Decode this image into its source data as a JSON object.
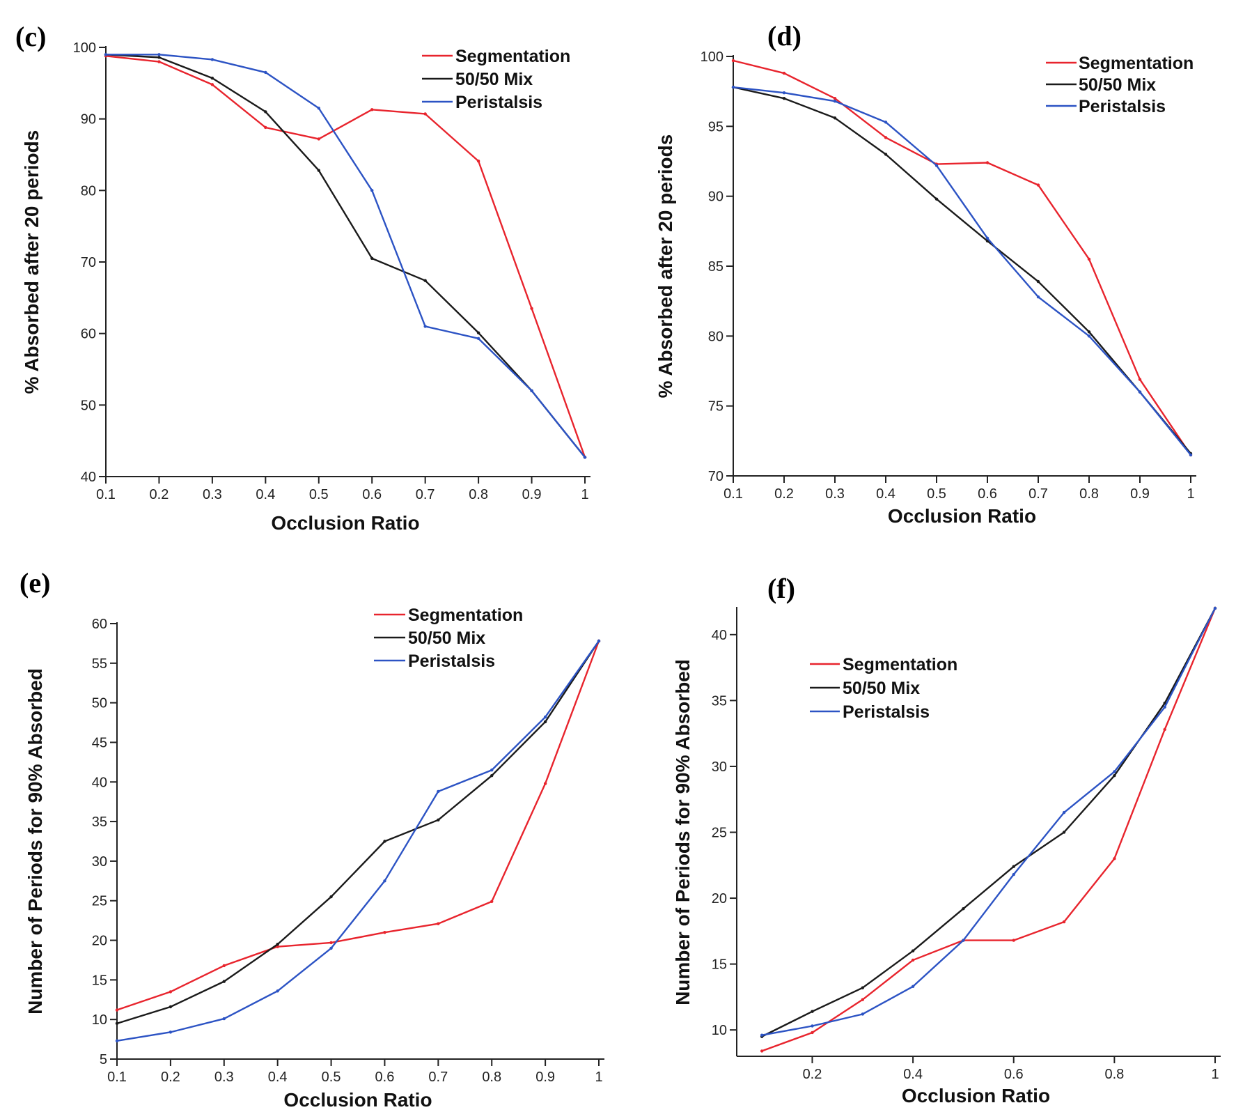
{
  "colors": {
    "segmentation": "#e8242d",
    "mix": "#1a1a1a",
    "peristalsis": "#2c53c4"
  },
  "chart_data": [
    {
      "panel": "(c)",
      "type": "line",
      "xlabel": "Occlusion Ratio",
      "ylabel": "% Absorbed after 20 periods",
      "xlim": [
        0.1,
        1.0
      ],
      "ylim": [
        40,
        100
      ],
      "xticks": [
        0.1,
        0.2,
        0.3,
        0.4,
        0.5,
        0.6,
        0.7,
        0.8,
        0.9,
        1.0
      ],
      "xtick_labels": [
        "0.1",
        "0.2",
        "0.3",
        "0.4",
        "0.5",
        "0.6",
        "0.7",
        "0.8",
        "0.9",
        "1"
      ],
      "yticks": [
        40,
        50,
        60,
        70,
        80,
        90,
        100
      ],
      "ytick_labels": [
        "40",
        "50",
        "60",
        "70",
        "80",
        "90",
        "100"
      ],
      "legend_position": "top-right",
      "x": [
        0.1,
        0.2,
        0.3,
        0.4,
        0.5,
        0.6,
        0.7,
        0.8,
        0.9,
        1.0
      ],
      "series": [
        {
          "name": "Segmentation",
          "color_key": "segmentation",
          "values": [
            98.8,
            98.0,
            94.8,
            88.8,
            87.2,
            91.3,
            90.7,
            84.1,
            63.5,
            42.7
          ]
        },
        {
          "name": "50/50 Mix",
          "color_key": "mix",
          "values": [
            99.0,
            98.6,
            95.7,
            91.0,
            82.8,
            70.5,
            67.4,
            60.1,
            52.0,
            42.7
          ]
        },
        {
          "name": "Peristalsis",
          "color_key": "peristalsis",
          "values": [
            99.0,
            99.0,
            98.3,
            96.5,
            91.5,
            80.0,
            61.0,
            59.3,
            52.0,
            42.7
          ]
        }
      ]
    },
    {
      "panel": "(d)",
      "type": "line",
      "xlabel": "Occlusion Ratio",
      "ylabel": "% Absorbed after 20 periods",
      "xlim": [
        0.1,
        1.0
      ],
      "ylim": [
        70,
        100
      ],
      "xticks": [
        0.1,
        0.2,
        0.3,
        0.4,
        0.5,
        0.6,
        0.7,
        0.8,
        0.9,
        1.0
      ],
      "xtick_labels": [
        "0.1",
        "0.2",
        "0.3",
        "0.4",
        "0.5",
        "0.6",
        "0.7",
        "0.8",
        "0.9",
        "1"
      ],
      "yticks": [
        70,
        75,
        80,
        85,
        90,
        95,
        100
      ],
      "ytick_labels": [
        "70",
        "75",
        "80",
        "85",
        "90",
        "95",
        "100"
      ],
      "legend_position": "top-right",
      "x": [
        0.1,
        0.2,
        0.3,
        0.4,
        0.5,
        0.6,
        0.7,
        0.8,
        0.9,
        1.0
      ],
      "series": [
        {
          "name": "Segmentation",
          "color_key": "segmentation",
          "values": [
            99.7,
            98.8,
            97.0,
            94.2,
            92.3,
            92.4,
            90.8,
            85.5,
            76.9,
            71.5
          ]
        },
        {
          "name": "50/50 Mix",
          "color_key": "mix",
          "values": [
            97.8,
            97.0,
            95.6,
            93.0,
            89.8,
            86.8,
            83.9,
            80.3,
            76.0,
            71.6
          ]
        },
        {
          "name": "Peristalsis",
          "color_key": "peristalsis",
          "values": [
            97.8,
            97.4,
            96.8,
            95.3,
            92.2,
            87.0,
            82.8,
            80.0,
            76.0,
            71.5
          ]
        }
      ]
    },
    {
      "panel": "(e)",
      "type": "line",
      "xlabel": "Occlusion Ratio",
      "ylabel": "Number of Periods for 90% Absorbed",
      "xlim": [
        0.1,
        1.0
      ],
      "ylim": [
        5,
        60
      ],
      "xticks": [
        0.1,
        0.2,
        0.3,
        0.4,
        0.5,
        0.6,
        0.7,
        0.8,
        0.9,
        1.0
      ],
      "xtick_labels": [
        "0.1",
        "0.2",
        "0.3",
        "0.4",
        "0.5",
        "0.6",
        "0.7",
        "0.8",
        "0.9",
        "1"
      ],
      "yticks": [
        5,
        10,
        15,
        20,
        25,
        30,
        35,
        40,
        45,
        50,
        55,
        60
      ],
      "ytick_labels": [
        "5",
        "10",
        "15",
        "20",
        "25",
        "30",
        "35",
        "40",
        "45",
        "50",
        "55",
        "60"
      ],
      "legend_position": "top-right",
      "x": [
        0.1,
        0.2,
        0.3,
        0.4,
        0.5,
        0.6,
        0.7,
        0.8,
        0.9,
        1.0
      ],
      "series": [
        {
          "name": "Segmentation",
          "color_key": "segmentation",
          "values": [
            11.2,
            13.5,
            16.8,
            19.2,
            19.7,
            21.0,
            22.1,
            24.9,
            39.8,
            57.8
          ]
        },
        {
          "name": "50/50 Mix",
          "color_key": "mix",
          "values": [
            9.5,
            11.6,
            14.8,
            19.5,
            25.5,
            32.5,
            35.2,
            40.8,
            47.6,
            57.8
          ]
        },
        {
          "name": "Peristalsis",
          "color_key": "peristalsis",
          "values": [
            7.3,
            8.4,
            10.1,
            13.6,
            19.0,
            27.5,
            38.8,
            41.5,
            48.2,
            57.8
          ]
        }
      ]
    },
    {
      "panel": "(f)",
      "type": "line",
      "xlabel": "Occlusion Ratio",
      "ylabel": "Number of Periods for 90% Absorbed",
      "xlim": [
        0.05,
        1.0
      ],
      "ylim": [
        8,
        42
      ],
      "xticks": [
        0.2,
        0.4,
        0.6,
        0.8,
        1.0
      ],
      "xtick_labels": [
        "0.2",
        "0.4",
        "0.6",
        "0.8",
        "1"
      ],
      "yticks": [
        10,
        15,
        20,
        25,
        30,
        35,
        40
      ],
      "ytick_labels": [
        "10",
        "15",
        "20",
        "25",
        "30",
        "35",
        "40"
      ],
      "legend_position": "top-left",
      "x": [
        0.1,
        0.2,
        0.3,
        0.4,
        0.5,
        0.6,
        0.7,
        0.8,
        0.9,
        1.0
      ],
      "series": [
        {
          "name": "Segmentation",
          "color_key": "segmentation",
          "values": [
            8.4,
            9.8,
            12.3,
            15.3,
            16.8,
            16.8,
            18.2,
            23.0,
            32.8,
            42.0
          ]
        },
        {
          "name": "50/50 Mix",
          "color_key": "mix",
          "values": [
            9.5,
            11.4,
            13.2,
            16.0,
            19.2,
            22.4,
            25.0,
            29.3,
            34.8,
            42.0
          ]
        },
        {
          "name": "Peristalsis",
          "color_key": "peristalsis",
          "values": [
            9.6,
            10.3,
            11.2,
            13.3,
            16.8,
            21.8,
            26.5,
            29.6,
            34.5,
            42.0
          ]
        }
      ]
    }
  ]
}
